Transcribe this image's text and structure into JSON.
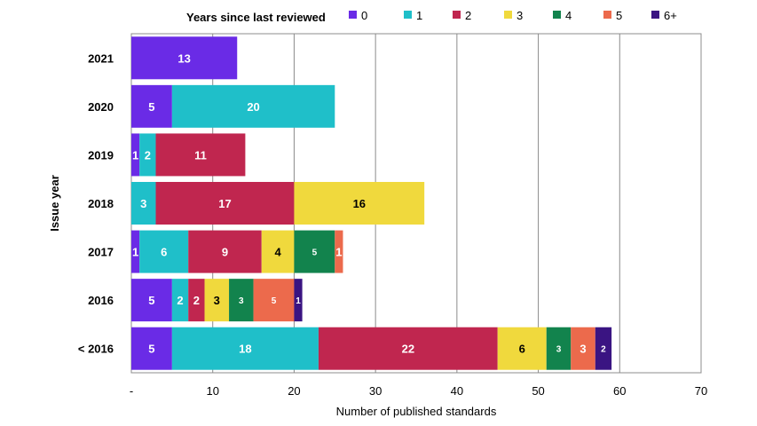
{
  "chart_data": {
    "type": "bar",
    "orientation": "horizontal",
    "stacked": true,
    "categories": [
      "2021",
      "2020",
      "2019",
      "2018",
      "2017",
      "2016",
      "< 2016"
    ],
    "series": [
      {
        "name": "0",
        "color": "#6a2be6",
        "values": [
          13,
          5,
          1,
          0,
          1,
          5,
          5
        ]
      },
      {
        "name": "1",
        "color": "#1fbfc9",
        "values": [
          0,
          20,
          2,
          3,
          6,
          2,
          18
        ]
      },
      {
        "name": "2",
        "color": "#c0264f",
        "values": [
          0,
          0,
          11,
          17,
          9,
          2,
          22
        ]
      },
      {
        "name": "3",
        "color": "#f0d93d",
        "values": [
          0,
          0,
          0,
          16,
          4,
          3,
          6
        ]
      },
      {
        "name": "4",
        "color": "#12834d",
        "values": [
          0,
          0,
          0,
          0,
          5,
          3,
          3
        ]
      },
      {
        "name": "5",
        "color": "#ec6a4c",
        "values": [
          0,
          0,
          0,
          0,
          1,
          5,
          3
        ]
      },
      {
        "name": "6+",
        "color": "#3a1482",
        "values": [
          0,
          0,
          0,
          0,
          0,
          1,
          2
        ]
      }
    ],
    "xlabel": "Number of published standards",
    "ylabel": "Issue year",
    "xlim": [
      0,
      70
    ],
    "xticks": [
      0,
      10,
      20,
      30,
      40,
      50,
      60,
      70
    ],
    "xtick_labels": [
      "-",
      "10",
      "20",
      "30",
      "40",
      "50",
      "60",
      "70"
    ],
    "legend_title": "Years since last reviewed",
    "legend_position": "top",
    "grid": "vertical"
  }
}
